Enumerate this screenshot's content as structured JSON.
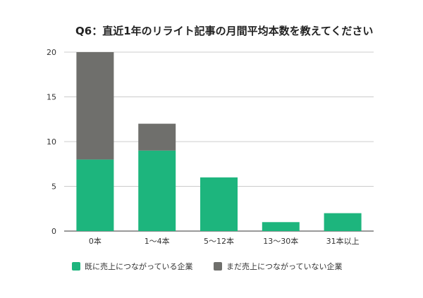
{
  "chart_data": {
    "type": "bar",
    "stacked": true,
    "title": "Q6：直近1年のリライト記事の月間平均本数を教えてください",
    "xlabel": "",
    "ylabel": "",
    "categories": [
      "0本",
      "1〜4本",
      "5〜12本",
      "13〜30本",
      "31本以上"
    ],
    "series": [
      {
        "name": "既に売上につながっている企業",
        "color": "#1db57d",
        "values": [
          8,
          9,
          6,
          1,
          2
        ]
      },
      {
        "name": "まだ売上につながっていない企業",
        "color": "#6f6f6c",
        "values": [
          12,
          3,
          0,
          0,
          0
        ]
      }
    ],
    "ylim": [
      0,
      20
    ],
    "yticks": [
      0,
      5,
      10,
      15,
      20
    ],
    "grid": true,
    "legend_position": "bottom"
  }
}
